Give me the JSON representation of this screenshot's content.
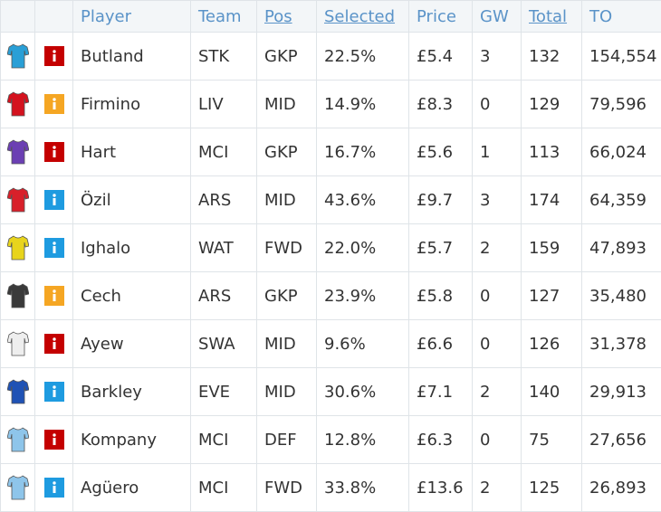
{
  "table": {
    "headers": [
      "Player",
      "Team",
      "Pos",
      "Selected",
      "Price",
      "GW",
      "Total",
      "TO"
    ],
    "sortable": [
      false,
      false,
      true,
      true,
      false,
      false,
      true,
      false
    ],
    "rows": [
      {
        "shirt": "#2a9fd6",
        "status": "#c40000",
        "cells": [
          "Butland",
          "STK",
          "GKP",
          "22.5%",
          "£5.4",
          "3",
          "132",
          "154,554"
        ]
      },
      {
        "shirt": "#d4121e",
        "status": "#f5a623",
        "cells": [
          "Firmino",
          "LIV",
          "MID",
          "14.9%",
          "£8.3",
          "0",
          "129",
          "79,596"
        ]
      },
      {
        "shirt": "#6b3fb3",
        "status": "#c40000",
        "cells": [
          "Hart",
          "MCI",
          "GKP",
          "16.7%",
          "£5.6",
          "1",
          "113",
          "66,024"
        ]
      },
      {
        "shirt": "#d8202a",
        "status": "#1e9be0",
        "cells": [
          "Özil",
          "ARS",
          "MID",
          "43.6%",
          "£9.7",
          "3",
          "174",
          "64,359"
        ]
      },
      {
        "shirt": "#e8d41c",
        "status": "#1e9be0",
        "cells": [
          "Ighalo",
          "WAT",
          "FWD",
          "22.0%",
          "£5.7",
          "2",
          "159",
          "47,893"
        ]
      },
      {
        "shirt": "#3a3a3a",
        "status": "#f5a623",
        "cells": [
          "Cech",
          "ARS",
          "GKP",
          "23.9%",
          "£5.8",
          "0",
          "127",
          "35,480"
        ]
      },
      {
        "shirt": "#eeeeee",
        "status": "#c40000",
        "cells": [
          "Ayew",
          "SWA",
          "MID",
          "9.6%",
          "£6.6",
          "0",
          "126",
          "31,378"
        ]
      },
      {
        "shirt": "#1f52b5",
        "status": "#1e9be0",
        "cells": [
          "Barkley",
          "EVE",
          "MID",
          "30.6%",
          "£7.1",
          "2",
          "140",
          "29,913"
        ]
      },
      {
        "shirt": "#8ec5ea",
        "status": "#c40000",
        "cells": [
          "Kompany",
          "MCI",
          "DEF",
          "12.8%",
          "£6.3",
          "0",
          "75",
          "27,656"
        ]
      },
      {
        "shirt": "#8ec5ea",
        "status": "#1e9be0",
        "cells": [
          "Agüero",
          "MCI",
          "FWD",
          "33.8%",
          "£13.6",
          "2",
          "125",
          "26,893"
        ]
      }
    ]
  }
}
